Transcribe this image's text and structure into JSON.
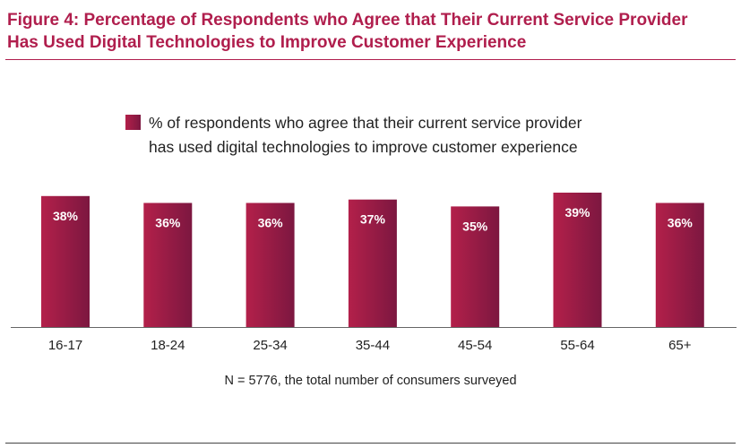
{
  "figure": {
    "title_line1": "Figure 4: Percentage of Respondents who Agree that Their Current Service Provider",
    "title_line2": "Has Used Digital Technologies to Improve Customer Experience"
  },
  "legend": {
    "line1": "% of respondents who agree that their current service provider",
    "line2": "has used digital technologies to improve customer experience"
  },
  "note": "N = 5776, the total number of consumers surveyed",
  "colors": {
    "accent": "#b01e4d",
    "bar_light": "#b3204a",
    "bar_dark": "#7c1740",
    "label": "#ffffff"
  },
  "chart_data": {
    "type": "bar",
    "categories": [
      "16-17",
      "18-24",
      "25-34",
      "35-44",
      "45-54",
      "55-64",
      "65+"
    ],
    "series": [
      {
        "name": "% of respondents who agree that their current service provider has used digital technologies to improve customer experience",
        "values": [
          38,
          36,
          36,
          37,
          35,
          39,
          36
        ]
      }
    ],
    "data_labels": [
      "38%",
      "36%",
      "36%",
      "37%",
      "35%",
      "39%",
      "36%"
    ],
    "title": "",
    "xlabel": "",
    "ylabel": "",
    "ylim": [
      0,
      39
    ],
    "grid": false,
    "axis_y_visible": false,
    "legend_position": "top-center"
  }
}
